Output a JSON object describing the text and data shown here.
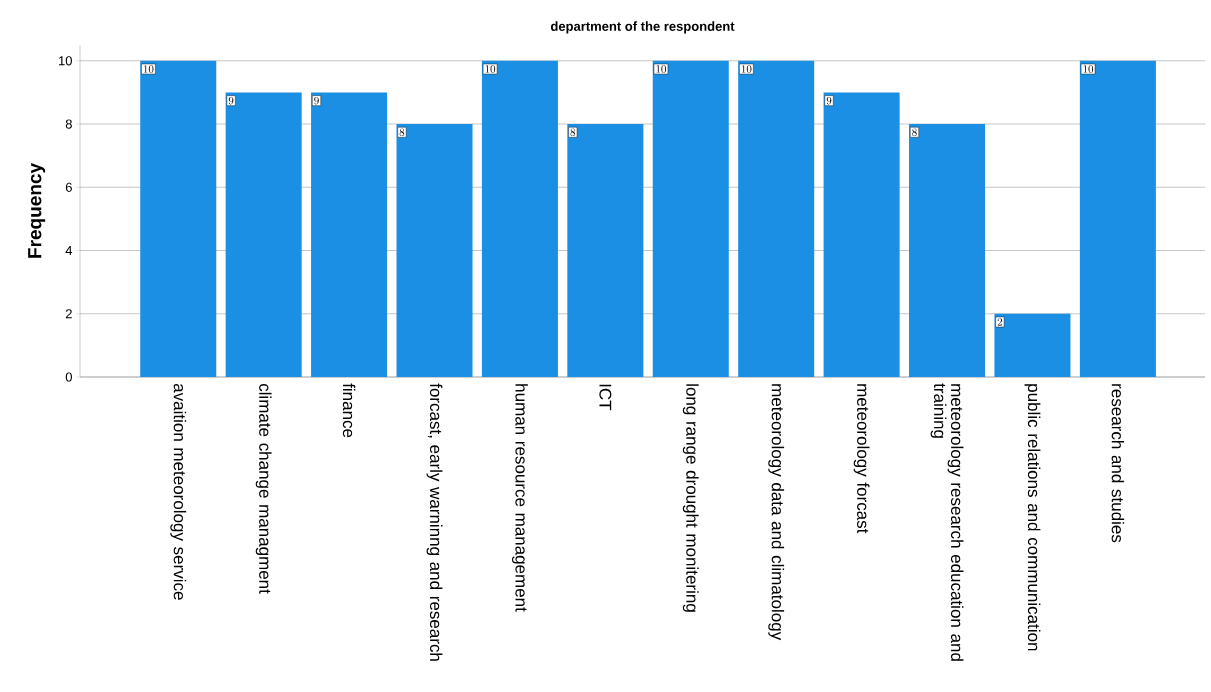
{
  "chart_data": {
    "type": "bar",
    "title": "department of the respondent",
    "ylabel": "Frequency",
    "categories": [
      "avaition meteorology service",
      "climate change managment",
      "finance",
      "forcast, early warninng and research",
      "human resource management",
      "ICT",
      "long range  drought monitering",
      "meteorology data and climatology",
      "meteorology forcast",
      "meteorology research education and training",
      "public relations and communication",
      "research and studies"
    ],
    "values": [
      10,
      9,
      9,
      8,
      10,
      8,
      10,
      10,
      9,
      8,
      2,
      10
    ],
    "color": "#1a8fe3",
    "ylim": [
      0,
      10.5
    ],
    "yticks": [
      0,
      2,
      4,
      6,
      8,
      10
    ],
    "grid": "y",
    "data_labels": true
  }
}
